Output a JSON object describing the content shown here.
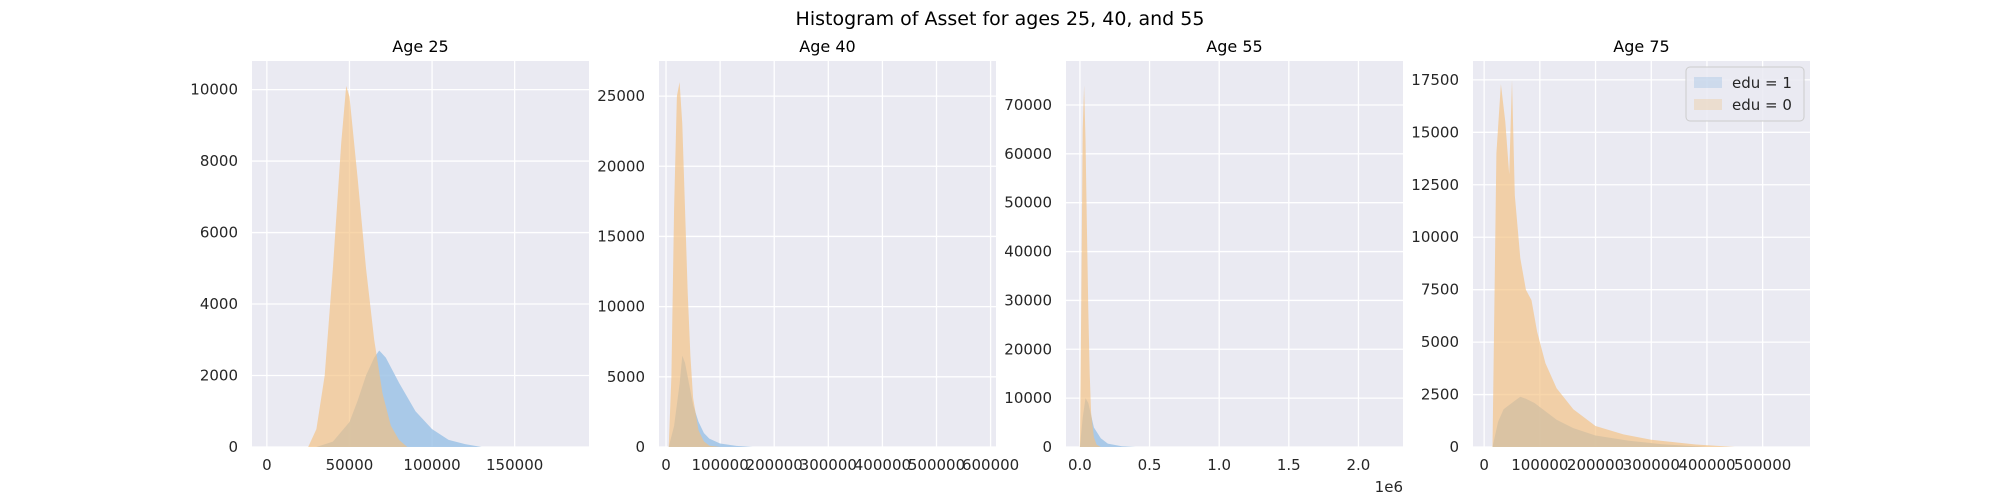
{
  "figure_title": "Histogram of Asset for ages 25, 40, and 55",
  "legend": [
    {
      "label": "edu = 1",
      "color": "#5b9bd5"
    },
    {
      "label": "edu = 0",
      "color": "#f0a848"
    }
  ],
  "colors": {
    "edu1": "#9dc3e6",
    "edu0": "#f5c07e",
    "overlap": "#c8be9a",
    "background": "#eaeaf2",
    "grid": "#ffffff"
  },
  "chart_data": [
    {
      "type": "histogram",
      "title": "Age 25",
      "xlim": [
        -9000,
        195000
      ],
      "ylim": [
        0,
        10800
      ],
      "xticks": [
        0,
        50000,
        100000,
        150000
      ],
      "xtick_labels": [
        "0",
        "50000",
        "100000",
        "150000"
      ],
      "yticks": [
        0,
        2000,
        4000,
        6000,
        8000,
        10000
      ],
      "ytick_labels": [
        "0",
        "2000",
        "4000",
        "6000",
        "8000",
        "10000"
      ],
      "series": [
        {
          "name": "edu = 1",
          "x": [
            30000,
            40000,
            50000,
            55000,
            60000,
            65000,
            68000,
            72000,
            80000,
            90000,
            100000,
            110000,
            120000,
            130000
          ],
          "y": [
            0,
            150,
            700,
            1300,
            2000,
            2500,
            2700,
            2500,
            1800,
            1000,
            500,
            200,
            80,
            0
          ]
        },
        {
          "name": "edu = 0",
          "x": [
            25000,
            30000,
            35000,
            40000,
            45000,
            48000,
            50000,
            55000,
            60000,
            65000,
            70000,
            75000,
            80000,
            85000
          ],
          "y": [
            0,
            500,
            2000,
            5000,
            8500,
            10100,
            9800,
            7500,
            5000,
            3000,
            1500,
            600,
            200,
            0
          ]
        }
      ]
    },
    {
      "type": "histogram",
      "title": "Age 40",
      "xlim": [
        -13000,
        610000
      ],
      "ylim": [
        0,
        27500
      ],
      "xticks": [
        0,
        100000,
        200000,
        300000,
        400000,
        500000,
        600000
      ],
      "xtick_labels": [
        "0",
        "100000",
        "200000",
        "300000",
        "400000",
        "500000",
        "600000"
      ],
      "yticks": [
        0,
        5000,
        10000,
        15000,
        20000,
        25000
      ],
      "ytick_labels": [
        "0",
        "5000",
        "10000",
        "15000",
        "20000",
        "25000"
      ],
      "series": [
        {
          "name": "edu = 1",
          "x": [
            5000,
            15000,
            25000,
            30000,
            35000,
            40000,
            50000,
            60000,
            70000,
            80000,
            100000,
            130000,
            160000
          ],
          "y": [
            0,
            1500,
            4500,
            6500,
            6000,
            5000,
            3000,
            1800,
            1000,
            600,
            250,
            80,
            0
          ]
        },
        {
          "name": "edu = 0",
          "x": [
            5000,
            10000,
            15000,
            20000,
            25000,
            30000,
            35000,
            40000,
            45000,
            50000,
            60000,
            70000,
            80000,
            100000
          ],
          "y": [
            0,
            5000,
            17000,
            25000,
            26000,
            23000,
            17000,
            11000,
            6500,
            3500,
            1200,
            400,
            100,
            0
          ]
        }
      ]
    },
    {
      "type": "histogram",
      "title": "Age 55",
      "xlim": [
        -100000,
        2320000
      ],
      "ylim": [
        0,
        79000
      ],
      "xticks": [
        0,
        500000,
        1000000,
        1500000,
        2000000
      ],
      "xtick_labels": [
        "0.0",
        "0.5",
        "1.0",
        "1.5",
        "2.0"
      ],
      "yticks": [
        0,
        10000,
        20000,
        30000,
        40000,
        50000,
        60000,
        70000
      ],
      "ytick_labels": [
        "0",
        "10000",
        "20000",
        "30000",
        "40000",
        "50000",
        "60000",
        "70000"
      ],
      "offset_label": "1e6",
      "series": [
        {
          "name": "edu = 1",
          "x": [
            0,
            20000,
            40000,
            60000,
            80000,
            100000,
            150000,
            200000,
            300000,
            400000
          ],
          "y": [
            0,
            6000,
            10000,
            9000,
            6500,
            4000,
            1800,
            700,
            150,
            0
          ]
        },
        {
          "name": "edu = 0",
          "x": [
            0,
            10000,
            20000,
            30000,
            40000,
            50000,
            60000,
            70000,
            80000,
            100000,
            120000,
            150000
          ],
          "y": [
            0,
            30000,
            65000,
            74000,
            63000,
            45000,
            28000,
            15000,
            7000,
            2000,
            500,
            0
          ]
        }
      ]
    },
    {
      "type": "histogram",
      "title": "Age 75",
      "xlim": [
        -20000,
        585000
      ],
      "ylim": [
        0,
        18400
      ],
      "xticks": [
        0,
        100000,
        200000,
        300000,
        400000,
        500000
      ],
      "xtick_labels": [
        "0",
        "100000",
        "200000",
        "300000",
        "400000",
        "500000"
      ],
      "yticks": [
        0,
        2500,
        5000,
        7500,
        10000,
        12500,
        15000,
        17500
      ],
      "ytick_labels": [
        "0",
        "2500",
        "5000",
        "7500",
        "10000",
        "12500",
        "15000",
        "17500"
      ],
      "series": [
        {
          "name": "edu = 1",
          "x": [
            15000,
            25000,
            35000,
            45000,
            55000,
            65000,
            75000,
            90000,
            110000,
            130000,
            160000,
            200000,
            260000,
            320000,
            400000
          ],
          "y": [
            0,
            1200,
            1800,
            2000,
            2200,
            2400,
            2300,
            2100,
            1700,
            1300,
            900,
            550,
            300,
            130,
            0
          ]
        },
        {
          "name": "edu = 0",
          "x": [
            15000,
            22000,
            30000,
            38000,
            45000,
            50000,
            55000,
            65000,
            75000,
            85000,
            95000,
            110000,
            130000,
            160000,
            200000,
            250000,
            300000,
            380000,
            450000
          ],
          "y": [
            0,
            14000,
            17300,
            15500,
            13000,
            17500,
            12000,
            9000,
            7500,
            7000,
            5500,
            4000,
            2800,
            1800,
            1000,
            600,
            350,
            120,
            0
          ]
        }
      ]
    }
  ]
}
